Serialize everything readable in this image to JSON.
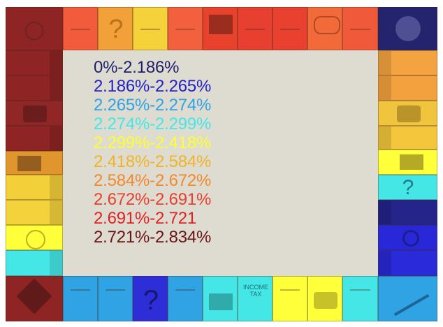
{
  "legend": [
    {
      "label": "0%-2.186%",
      "color": "#1f1f6e"
    },
    {
      "label": "2.186%-2.265%",
      "color": "#2323c8"
    },
    {
      "label": "2.265%-2.274%",
      "color": "#2fa3e3"
    },
    {
      "label": "2.274%-2.299%",
      "color": "#45e6e6"
    },
    {
      "label": "2.299%-2.418%",
      "color": "#ffff2e"
    },
    {
      "label": "2.418%-2.584%",
      "color": "#f0b429"
    },
    {
      "label": "2.584%-2.672%",
      "color": "#f28a2c"
    },
    {
      "label": "2.672%-2.691%",
      "color": "#e8402d"
    },
    {
      "label": "2.691%-2.721",
      "color": "#dd2323"
    },
    {
      "label": "2.721%-2.834%",
      "color": "#6b1414"
    }
  ],
  "icons": {
    "chance": "question-mark-icon",
    "railroad": "locomotive-icon",
    "free_parking": "car-icon",
    "go_to_jail": "policeman-icon",
    "jail": "jail-icon",
    "go": "go-arrow-icon",
    "electric": "light-bulb-icon",
    "water": "faucet-icon",
    "community_chest": "chest-icon",
    "income_tax": "tax-icon",
    "luxury_tax": "ring-icon"
  },
  "tiles": {
    "income_tax_text": "INCOME TAX"
  }
}
